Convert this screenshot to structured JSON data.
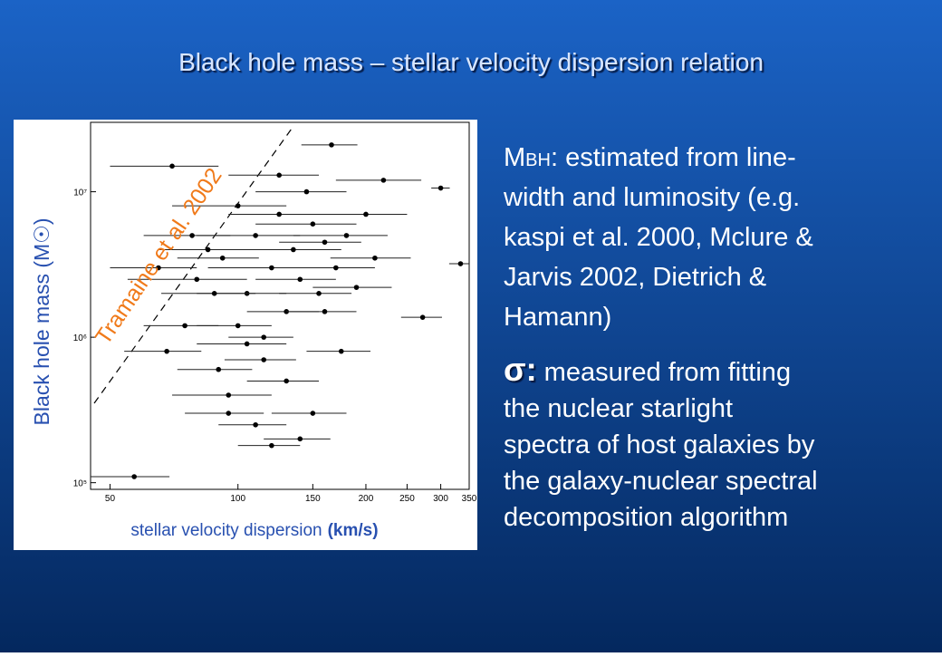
{
  "title": "Black hole mass – stellar velocity dispersion relation",
  "chart_data": {
    "type": "scatter",
    "xlabel": "stellar velocity dispersion",
    "xlabel_unit": "(km/s)",
    "ylabel": "Black hole mass (M☉)",
    "annotation": "Tramaine et al. 2002",
    "xscale": "log",
    "yscale": "log",
    "xlim": [
      45,
      350
    ],
    "ylim": [
      90000,
      30000000
    ],
    "xticks": [
      50,
      100,
      150,
      200,
      250,
      300,
      350
    ],
    "yticks": [
      {
        "value": 100000,
        "label": "10⁵"
      },
      {
        "value": 1000000,
        "label": "10⁶"
      },
      {
        "value": 10000000,
        "label": "10⁷"
      }
    ],
    "color": "#000000",
    "x": [
      57,
      166,
      300,
      334,
      272,
      70,
      75,
      80,
      85,
      90,
      95,
      100,
      105,
      110,
      115,
      120,
      125,
      130,
      135,
      140,
      145,
      150,
      155,
      160,
      170,
      175,
      180,
      190,
      200,
      210,
      220,
      95,
      110,
      120,
      130,
      100,
      88,
      92,
      78,
      68,
      65,
      115,
      125,
      140,
      160,
      150,
      105
    ],
    "values": [
      110000,
      21000000,
      10600000,
      3200000,
      1370000,
      15000000,
      1200000,
      2500000,
      4000000,
      600000,
      300000,
      8000000,
      2000000,
      5000000,
      1000000,
      3000000,
      7000000,
      1500000,
      4000000,
      2500000,
      10000000,
      6000000,
      2000000,
      4500000,
      3000000,
      800000,
      5000000,
      2200000,
      7000000,
      3500000,
      12000000,
      400000,
      250000,
      180000,
      500000,
      1200000,
      2000000,
      3500000,
      5000000,
      800000,
      3000000,
      700000,
      13000000,
      200000,
      1500000,
      300000,
      900000
    ],
    "xerr": [
      12,
      25,
      15,
      20,
      30,
      20,
      15,
      25,
      20,
      18,
      20,
      30,
      25,
      30,
      20,
      35,
      30,
      25,
      40,
      30,
      35,
      40,
      30,
      35,
      40,
      30,
      45,
      40,
      50,
      45,
      50,
      25,
      20,
      20,
      25,
      20,
      22,
      20,
      18,
      14,
      15,
      22,
      30,
      25,
      30,
      30,
      25
    ]
  },
  "text": {
    "mbh": {
      "symbol": "M",
      "sub": "BH",
      "lines": [
        ": estimated from line-",
        "width and luminosity (e.g.",
        "kaspi et al. 2000, Mclure &",
        "Jarvis 2002, Dietrich &",
        "Hamann)"
      ]
    },
    "sigma": {
      "symbol": "σ:",
      "lines": [
        " measured from fitting",
        "the nuclear starlight",
        "spectra of host galaxies by",
        "the galaxy-nuclear spectral",
        "decomposition algorithm"
      ]
    }
  }
}
